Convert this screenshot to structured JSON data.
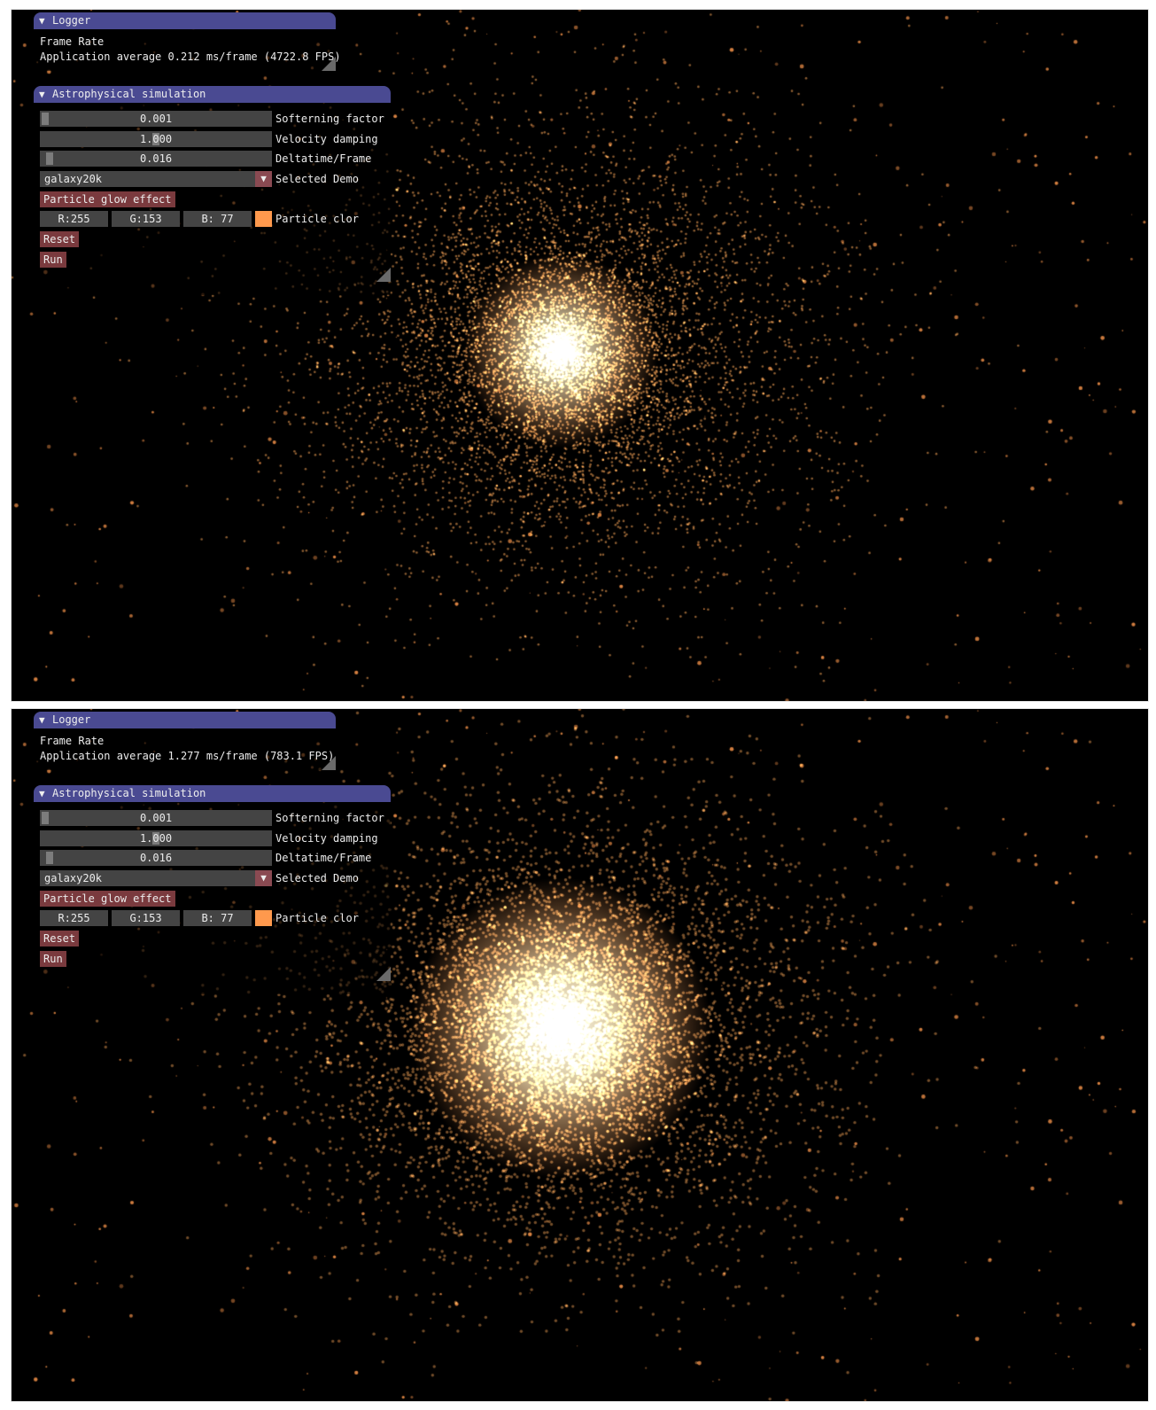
{
  "panels": [
    {
      "logger": {
        "title": "Logger",
        "line1": "Frame Rate",
        "line2": "Application average 0.212 ms/frame (4722.8 FPS)"
      },
      "sim": {
        "title": "Astrophysical simulation",
        "softening": {
          "value": "0.001",
          "label": "Softerning factor",
          "level": 0.0
        },
        "damping": {
          "value": "1.000",
          "label": "Velocity damping",
          "level": 0.5
        },
        "deltatime": {
          "value": "0.016",
          "label": "Deltatime/Frame",
          "level": 0.02
        },
        "demo": {
          "value": "galaxy20k",
          "label": "Selected Demo"
        },
        "glow_button": "Particle glow effect",
        "color": {
          "r": "R:255",
          "g": "G:153",
          "b": "B: 77",
          "label": "Particle clor",
          "swatch": "#ff994d"
        },
        "reset_button": "Reset",
        "run_button": "Run"
      }
    },
    {
      "logger": {
        "title": "Logger",
        "line1": "Frame Rate",
        "line2": "Application average 1.277 ms/frame (783.1 FPS)"
      },
      "sim": {
        "title": "Astrophysical simulation",
        "softening": {
          "value": "0.001",
          "label": "Softerning factor",
          "level": 0.0
        },
        "damping": {
          "value": "1.000",
          "label": "Velocity damping",
          "level": 0.5
        },
        "deltatime": {
          "value": "0.016",
          "label": "Deltatime/Frame",
          "level": 0.02
        },
        "demo": {
          "value": "galaxy20k",
          "label": "Selected Demo"
        },
        "glow_button": "Particle glow effect",
        "color": {
          "r": "R:255",
          "g": "G:153",
          "b": "B: 77",
          "label": "Particle clor",
          "swatch": "#ff994d"
        },
        "reset_button": "Reset",
        "run_button": "Run"
      }
    }
  ],
  "icons": {
    "collapse": "triangle-down-icon",
    "combo_arrow": "triangle-down-icon"
  },
  "colors": {
    "title_bar": "#4a4a92",
    "button": "#7a3a3e",
    "particle": "#ff994d",
    "background": "#000000"
  }
}
